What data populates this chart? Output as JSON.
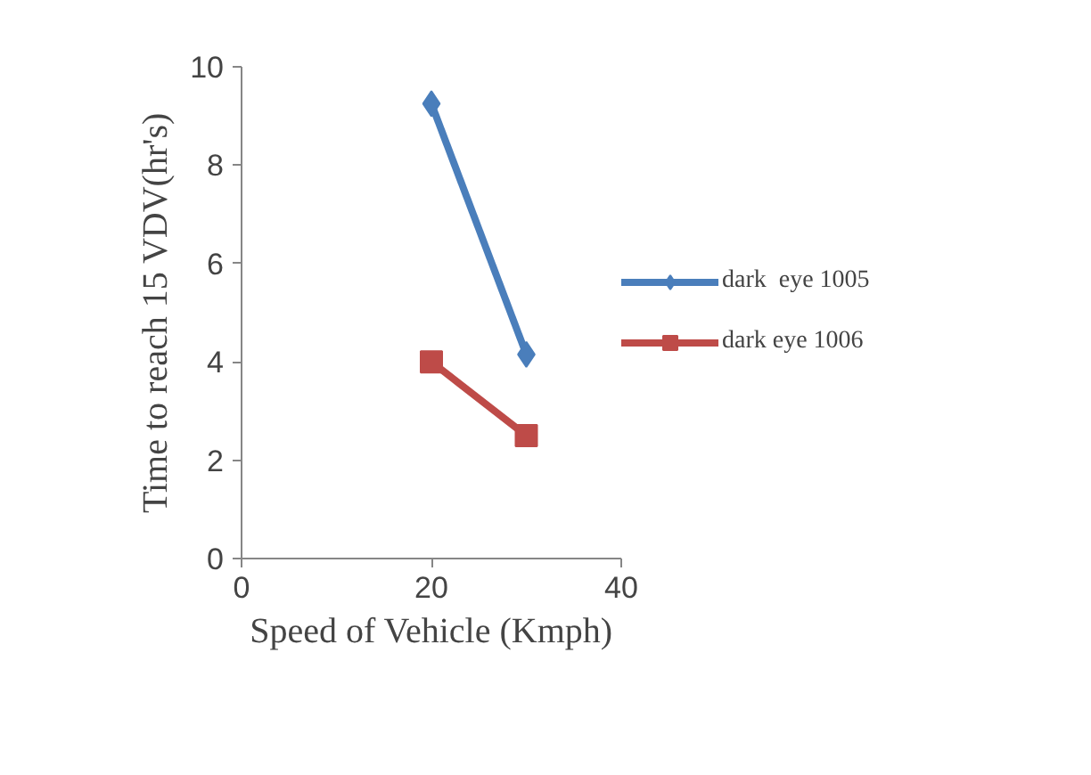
{
  "chart_data": {
    "type": "line",
    "xlabel": "Speed of Vehicle (Kmph)",
    "ylabel": "Time to reach 15 VDV(hr's)",
    "x": [
      20,
      30
    ],
    "series": [
      {
        "name": "dark  eye 1005",
        "color": "#4a7ebb",
        "values": [
          9.25,
          4.15
        ],
        "marker": "diamond"
      },
      {
        "name": "dark eye 1006",
        "color": "#be4b48",
        "values": [
          4,
          2.5
        ],
        "marker": "square"
      }
    ],
    "xlim": [
      0,
      40
    ],
    "xticks": [
      0,
      20,
      40
    ],
    "ylim": [
      0,
      10
    ],
    "yticks": [
      0,
      2,
      4,
      6,
      8,
      10
    ],
    "grid": false,
    "legend": "right"
  }
}
